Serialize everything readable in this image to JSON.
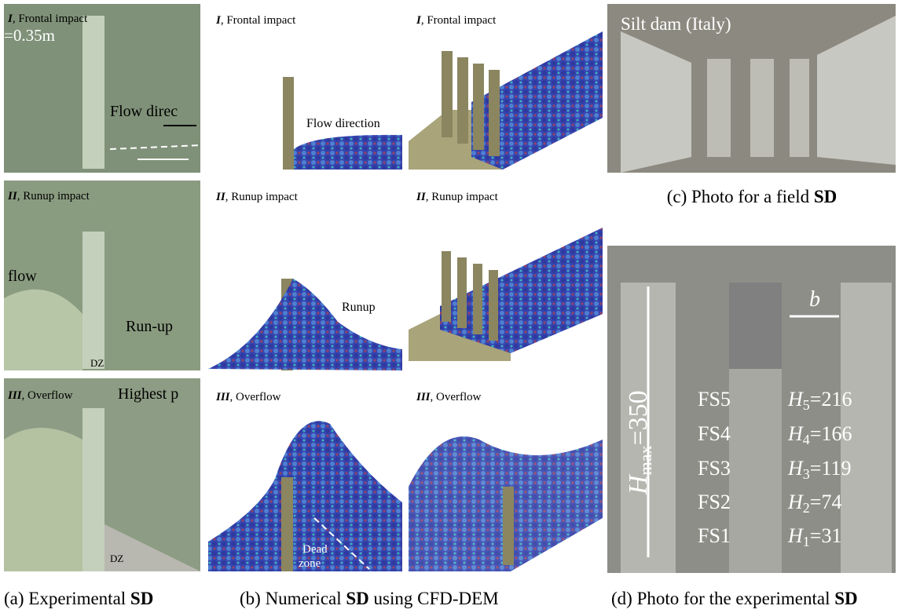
{
  "panel_a": {
    "rows": [
      {
        "label": {
          "numeral": "I",
          "text": ", Frontal impact"
        },
        "annotations": [
          "=0.35m",
          "Flow direc"
        ]
      },
      {
        "label": {
          "numeral": "II",
          "text": ", Runup impact"
        },
        "annotations": [
          "flow",
          "Run-up",
          "DZ"
        ]
      },
      {
        "label": {
          "numeral": "III",
          "text": ", Overflow"
        },
        "annotations": [
          "Highest p",
          "DZ"
        ]
      }
    ],
    "caption": {
      "text": "(a) Experimental ",
      "bold": "SD"
    }
  },
  "panel_b": {
    "rows": [
      {
        "label": {
          "numeral": "I",
          "text": ", Frontal impact"
        },
        "annotation": [
          "Flow direction"
        ]
      },
      {
        "label": {
          "numeral": "II",
          "text": ", Runup impact"
        },
        "annotation": [
          "Runup"
        ]
      },
      {
        "label": {
          "numeral": "III",
          "text": ", Overflow"
        },
        "annotation": [
          "Dead",
          "zone"
        ]
      }
    ],
    "rows_3d": [
      {
        "numeral": "I",
        "text": ", Frontal impact"
      },
      {
        "numeral": "II",
        "text": ", Runup impact"
      },
      {
        "numeral": "III",
        "text": ", Overflow"
      }
    ],
    "caption": {
      "prefix": "(b) Numerical ",
      "bold": "SD",
      "suffix": " using CFD-DEM"
    }
  },
  "panel_c": {
    "photo_label": "Silt dam (Italy)",
    "caption": {
      "text": "(c) Photo for a field ",
      "bold": "SD"
    }
  },
  "panel_d": {
    "gap_label": "b",
    "height_label": {
      "symbol": "H",
      "subscript": "max",
      "value": "=350"
    },
    "sensors": [
      {
        "name": "FS5",
        "symbol": "H",
        "subscript": "5",
        "value": "=216"
      },
      {
        "name": "FS4",
        "symbol": "H",
        "subscript": "4",
        "value": "=166"
      },
      {
        "name": "FS3",
        "symbol": "H",
        "subscript": "3",
        "value": "=119"
      },
      {
        "name": "FS2",
        "symbol": "H",
        "subscript": "2",
        "value": "=74"
      },
      {
        "name": "FS1",
        "symbol": "H",
        "subscript": "1",
        "value": "=31"
      }
    ],
    "caption": {
      "text": "(d) Photo for the experimental ",
      "bold": "SD"
    }
  }
}
